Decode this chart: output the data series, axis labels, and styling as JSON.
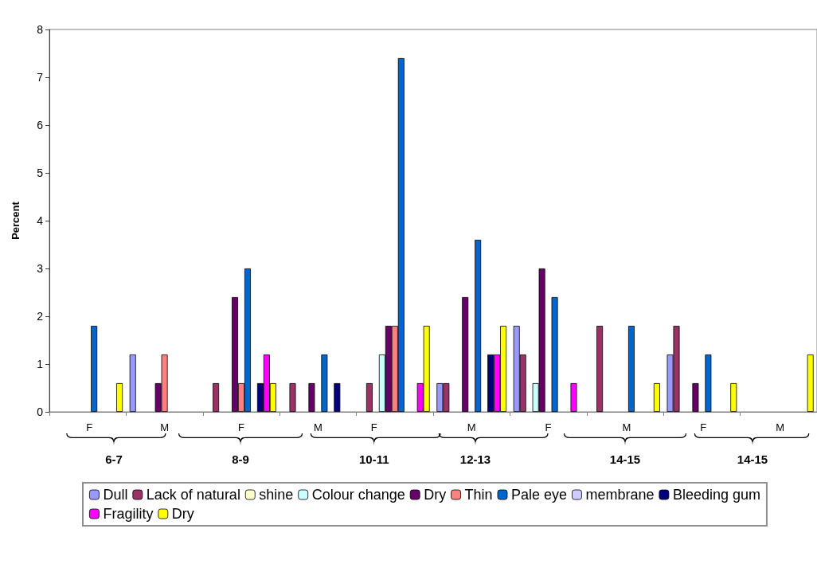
{
  "chart_data": {
    "type": "bar",
    "ylabel": "Percent",
    "categories": [
      null,
      null,
      null,
      null,
      null,
      null,
      null,
      null,
      null,
      null
    ],
    "series": [
      {
        "name": "Dull",
        "color": "#9999ff",
        "values": [
          null,
          1.2,
          null,
          null,
          null,
          0.6,
          1.8,
          null,
          1.2,
          null
        ]
      },
      {
        "name": "Lack of natural",
        "color": "#993366",
        "values": [
          null,
          null,
          0.6,
          0.6,
          0.6,
          0.6,
          1.2,
          1.8,
          1.8,
          null
        ]
      },
      {
        "name": "shine",
        "color": "#ffffcc",
        "values": [
          null,
          null,
          null,
          null,
          null,
          null,
          null,
          null,
          null,
          null
        ]
      },
      {
        "name": "Colour change",
        "color": "#ccffff",
        "values": [
          null,
          null,
          null,
          null,
          1.2,
          null,
          0.6,
          null,
          null,
          null
        ]
      },
      {
        "name": "Dry",
        "color": "#660066",
        "values": [
          null,
          0.6,
          2.4,
          0.6,
          1.8,
          2.4,
          3.0,
          null,
          0.6,
          null
        ]
      },
      {
        "name": "Thin",
        "color": "#ff8080",
        "values": [
          null,
          1.2,
          0.6,
          null,
          1.8,
          null,
          null,
          null,
          null,
          null
        ]
      },
      {
        "name": "Pale eye",
        "color": "#0066cc",
        "values": [
          1.8,
          null,
          3.0,
          1.2,
          7.4,
          3.6,
          2.4,
          1.8,
          1.2,
          null
        ]
      },
      {
        "name": "membrane",
        "color": "#ccccff",
        "values": [
          null,
          null,
          null,
          null,
          null,
          null,
          null,
          null,
          null,
          null
        ]
      },
      {
        "name": "Bleeding gum",
        "color": "#000080",
        "values": [
          null,
          null,
          0.6,
          0.6,
          null,
          1.2,
          null,
          null,
          null,
          null
        ]
      },
      {
        "name": "Fragility",
        "color": "#ff00ff",
        "values": [
          null,
          null,
          1.2,
          null,
          0.6,
          1.2,
          0.6,
          null,
          null,
          null
        ]
      },
      {
        "name": "Dry",
        "color": "#ffff00",
        "values": [
          0.6,
          null,
          0.6,
          null,
          1.8,
          1.8,
          null,
          0.6,
          0.6,
          1.2
        ]
      }
    ],
    "ylim": [
      0,
      8
    ],
    "yticks": [
      0,
      1,
      2,
      3,
      4,
      5,
      6,
      7,
      8
    ],
    "grid": false,
    "legend": "bottom",
    "annotations": [
      "F",
      "M",
      "F",
      "M",
      "F",
      "M",
      "F",
      "M",
      "F",
      "M",
      "6-7",
      "8-9",
      "10-11",
      "12-13",
      "14-15",
      "14-15"
    ]
  }
}
